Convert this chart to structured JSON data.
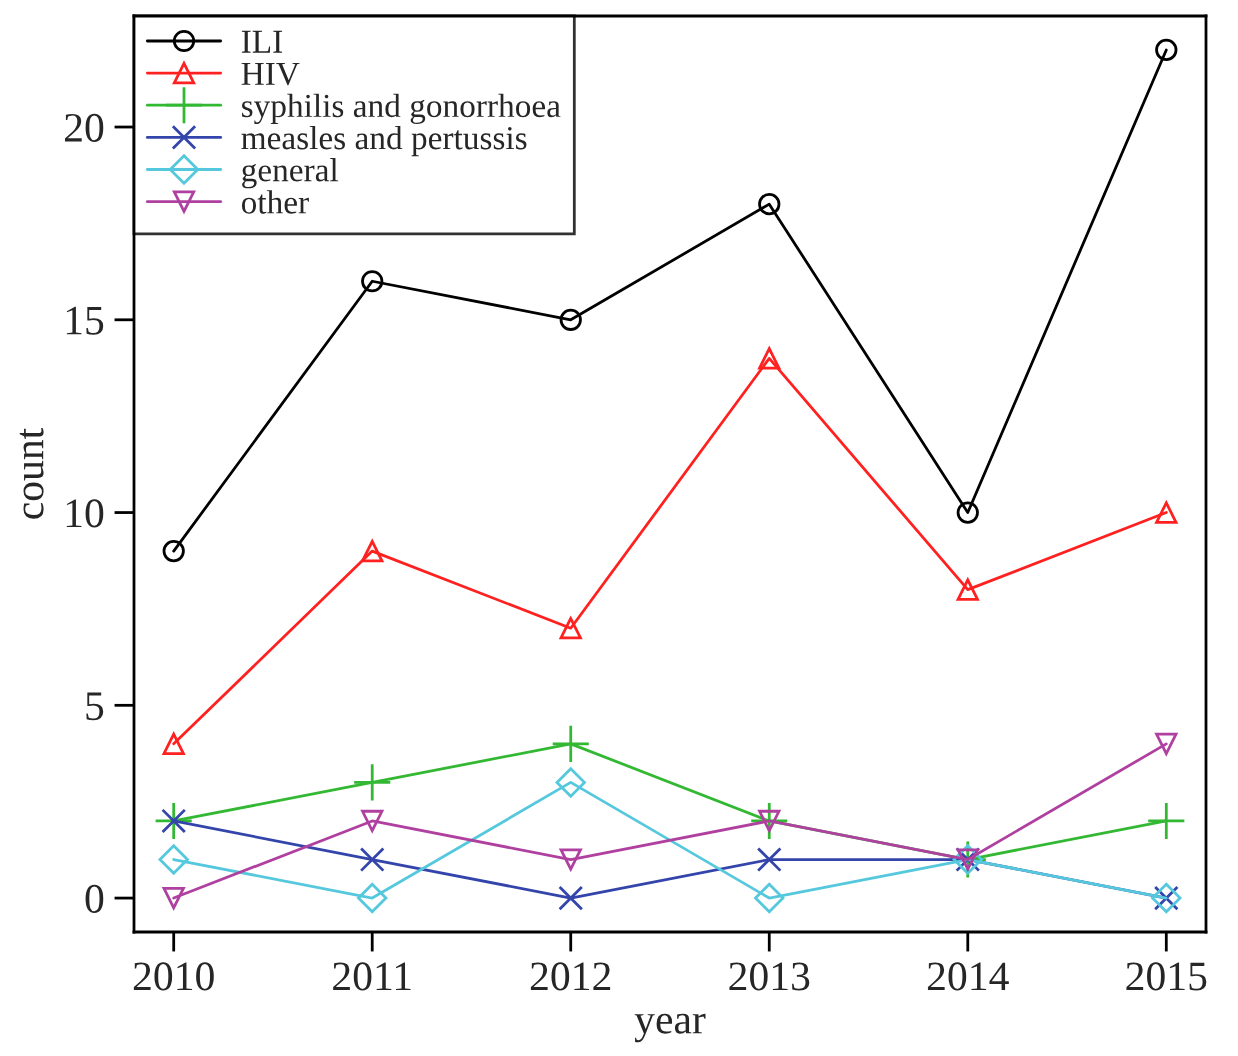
{
  "chart_data": {
    "type": "line",
    "xlabel": "year",
    "ylabel": "count",
    "x": [
      2010,
      2011,
      2012,
      2013,
      2014,
      2015
    ],
    "xlim": [
      2009.8,
      2015.2
    ],
    "xticks": [
      2010,
      2011,
      2012,
      2013,
      2014,
      2015
    ],
    "ylim": [
      -0.88,
      22.88
    ],
    "yticks": [
      0,
      5,
      10,
      15,
      20
    ],
    "grid": false,
    "legend": "top left",
    "line_style": "solid",
    "series": [
      {
        "name": "ILI",
        "color": "#000000",
        "marker": "circle",
        "values": [
          9,
          16,
          15,
          18,
          10,
          22
        ]
      },
      {
        "name": "HIV",
        "color": "#ff2020",
        "marker": "triangle",
        "values": [
          4,
          9,
          7,
          14,
          8,
          10
        ]
      },
      {
        "name": "syphilis and gonorrhoea",
        "color": "#33b833",
        "marker": "plus",
        "values": [
          2,
          3,
          4,
          2,
          1,
          2
        ]
      },
      {
        "name": "measles and pertussis",
        "color": "#3344aa",
        "marker": "cross",
        "values": [
          2,
          1,
          0,
          1,
          1,
          0
        ]
      },
      {
        "name": "general",
        "color": "#55c8dd",
        "marker": "diamond",
        "values": [
          1,
          0,
          3,
          0,
          1,
          0
        ]
      },
      {
        "name": "other",
        "color": "#b040a0",
        "marker": "triangle_down",
        "values": [
          0,
          2,
          1,
          2,
          1,
          4
        ]
      }
    ]
  }
}
